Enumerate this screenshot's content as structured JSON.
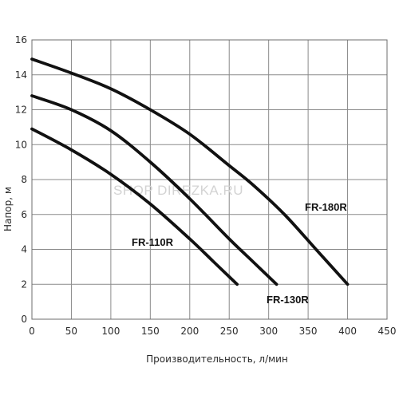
{
  "chart_data": {
    "type": "line",
    "xlabel": "Производительность, л/мин",
    "ylabel": "Напор, м",
    "xlim": [
      0,
      450
    ],
    "ylim": [
      0,
      16
    ],
    "x_ticks": [
      0,
      50,
      100,
      150,
      200,
      250,
      300,
      350,
      400,
      450
    ],
    "y_ticks": [
      0,
      2,
      4,
      6,
      8,
      10,
      12,
      14,
      16
    ],
    "grid": true,
    "watermark": "SHOP DIREZKA.RU",
    "series": [
      {
        "name": "FR-180R",
        "color": "#111111",
        "x": [
          0,
          50,
          100,
          150,
          200,
          250,
          280,
          320,
          360,
          400
        ],
        "y": [
          14.9,
          14.1,
          13.2,
          12.0,
          10.6,
          8.8,
          7.7,
          6.0,
          4.0,
          2.0
        ]
      },
      {
        "name": "FR-130R",
        "color": "#111111",
        "x": [
          0,
          50,
          100,
          150,
          200,
          250,
          280,
          310
        ],
        "y": [
          12.8,
          12.0,
          10.8,
          9.0,
          6.9,
          4.6,
          3.3,
          2.0
        ]
      },
      {
        "name": "FR-110R",
        "color": "#111111",
        "x": [
          0,
          50,
          100,
          150,
          200,
          230,
          260
        ],
        "y": [
          10.9,
          9.7,
          8.3,
          6.6,
          4.6,
          3.3,
          2.0
        ]
      }
    ]
  }
}
